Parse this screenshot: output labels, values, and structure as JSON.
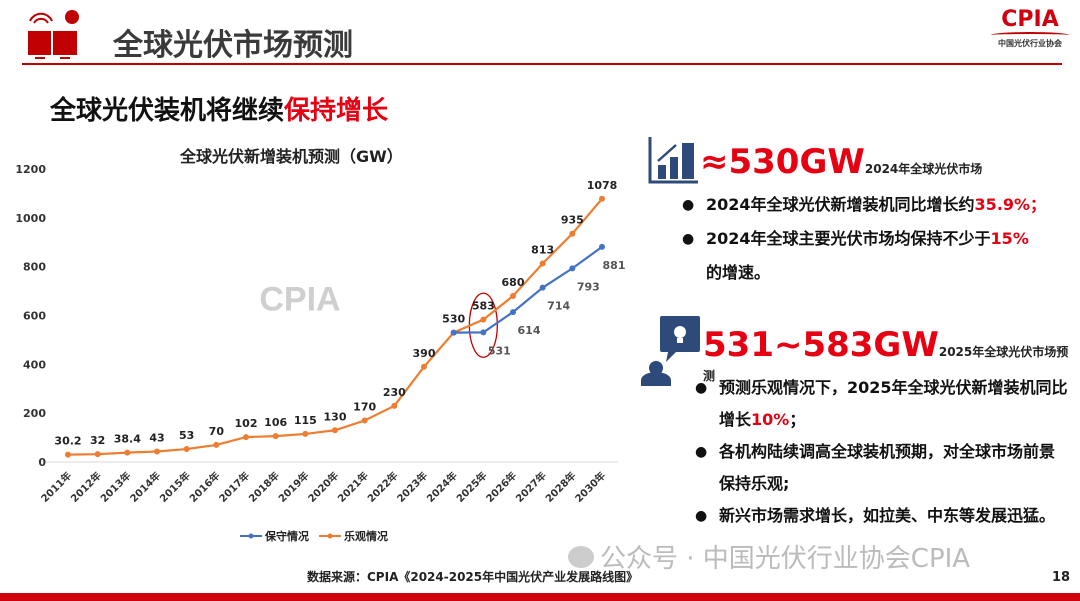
{
  "header": {
    "title": "全球光伏市场预测",
    "logo_text": "CPIA",
    "logo_sub": "中国光伏行业协会"
  },
  "subtitle": {
    "main": "全球光伏装机将继续",
    "highlight": "保持增长"
  },
  "chart_data": {
    "type": "line",
    "title": "全球光伏新增装机预测（GW）",
    "categories": [
      "2011年",
      "2012年",
      "2013年",
      "2014年",
      "2015年",
      "2016年",
      "2017年",
      "2018年",
      "2019年",
      "2020年",
      "2021年",
      "2022年",
      "2023年",
      "2024年",
      "2025年",
      "2026年",
      "2027年",
      "2028年",
      "2030年"
    ],
    "ylim": [
      0,
      1200
    ],
    "yticks": [
      0,
      200,
      400,
      600,
      800,
      1000,
      1200
    ],
    "grid": false,
    "legend_position": "bottom",
    "series": [
      {
        "name": "保守情况",
        "color": "#4472c4",
        "values": [
          null,
          null,
          null,
          null,
          null,
          null,
          null,
          null,
          null,
          null,
          null,
          null,
          null,
          530,
          531,
          614,
          714,
          793,
          881
        ],
        "labels": [
          "",
          "",
          "",
          "",
          "",
          "",
          "",
          "",
          "",
          "",
          "",
          "",
          "",
          "",
          "531",
          "614",
          "714",
          "793",
          "881"
        ]
      },
      {
        "name": "乐观情况",
        "color": "#ed7d31",
        "values": [
          30.2,
          32,
          38.4,
          43,
          53,
          70,
          102,
          106,
          115,
          130,
          170,
          230,
          390,
          530,
          583,
          680,
          813,
          935,
          1078
        ],
        "labels": [
          "30.2",
          "32",
          "38.4",
          "43",
          "53",
          "70",
          "102",
          "106",
          "115",
          "130",
          "170",
          "230",
          "390",
          "530",
          "583",
          "680",
          "813",
          "935",
          "1078"
        ]
      }
    ],
    "highlight_category": "2025年",
    "watermark": "CPIA"
  },
  "right": {
    "h1": {
      "value": "≈530GW",
      "caption": "2024年全球光伏市场"
    },
    "b1": [
      {
        "text": "2024年全球光伏新增装机同比增长约",
        "red": "35.9%；"
      },
      {
        "text": "2024年全球主要光伏市场均保持不少于",
        "red": "15%",
        "tail": "的增速。"
      }
    ],
    "h2": {
      "value": "531~583GW",
      "caption": "2025年全球光伏市场预测"
    },
    "b2": [
      {
        "text": "预测乐观情况下，2025年全球光伏新增装机同比增长",
        "red": "10%",
        "tail": "；"
      },
      {
        "text": "各机构陆续调高全球装机预期，对全球市场前景保持乐观;"
      },
      {
        "text": "新兴市场需求增长，如拉美、中东等发展迅猛。"
      }
    ]
  },
  "footer": {
    "source": "数据来源：CPIA《2024-2025年中国光伏产业发展路线图》",
    "page": "18",
    "watermark": "公众号 · 中国光伏行业协会CPIA"
  }
}
